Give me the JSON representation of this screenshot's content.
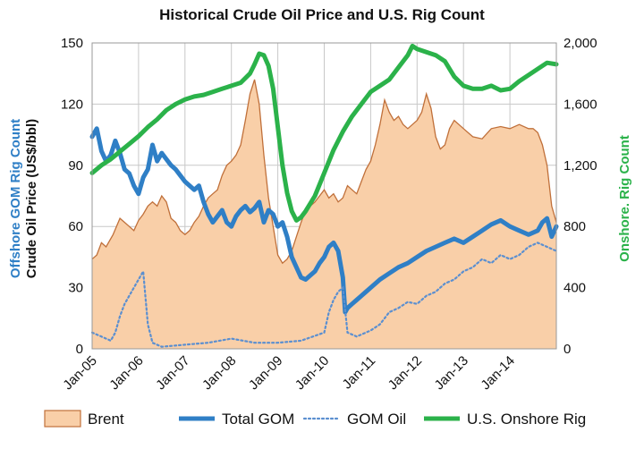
{
  "chart_data": {
    "type": "area",
    "title": "Historical Crude Oil Price and U.S. Rig Count",
    "ylabel_left_line1": "Offshore GOM Rig Count",
    "ylabel_left_line2": "Crude Oil Price (US$/bbl)",
    "ylabel_right": "Onshore. Rig Count",
    "x_ticks": [
      "Jan-05",
      "Jan-06",
      "Jan-07",
      "Jan-08",
      "Jan-09",
      "Jan-10",
      "Jan-11",
      "Jan-12",
      "Jan-13",
      "Jan-14"
    ],
    "x_range": [
      2005.0,
      2015.0
    ],
    "left_axis": {
      "ticks": [
        "0",
        "30",
        "60",
        "90",
        "120",
        "150"
      ],
      "range": [
        0,
        150
      ]
    },
    "right_axis": {
      "ticks": [
        "0",
        "400",
        "800",
        "1,200",
        "1,600",
        "2,000"
      ],
      "range": [
        0,
        2000
      ]
    },
    "grid": true,
    "legend_position": "bottom",
    "series": [
      {
        "name": "Brent",
        "style": "area",
        "axis": "left",
        "color": "#f9cfa8",
        "stroke": "#c0703a",
        "x": [
          2005.0,
          2005.1,
          2005.2,
          2005.3,
          2005.45,
          2005.6,
          2005.7,
          2005.8,
          2005.9,
          2006.0,
          2006.1,
          2006.2,
          2006.3,
          2006.4,
          2006.5,
          2006.6,
          2006.7,
          2006.8,
          2006.9,
          2007.0,
          2007.1,
          2007.2,
          2007.3,
          2007.4,
          2007.5,
          2007.6,
          2007.7,
          2007.8,
          2007.9,
          2008.0,
          2008.1,
          2008.2,
          2008.3,
          2008.4,
          2008.5,
          2008.6,
          2008.7,
          2008.8,
          2008.9,
          2009.0,
          2009.1,
          2009.2,
          2009.3,
          2009.4,
          2009.5,
          2009.6,
          2009.7,
          2009.8,
          2009.9,
          2010.0,
          2010.1,
          2010.2,
          2010.3,
          2010.4,
          2010.5,
          2010.6,
          2010.7,
          2010.8,
          2010.9,
          2011.0,
          2011.1,
          2011.2,
          2011.3,
          2011.4,
          2011.5,
          2011.6,
          2011.7,
          2011.8,
          2011.9,
          2012.0,
          2012.1,
          2012.2,
          2012.3,
          2012.4,
          2012.5,
          2012.6,
          2012.7,
          2012.8,
          2012.9,
          2013.0,
          2013.2,
          2013.4,
          2013.6,
          2013.8,
          2014.0,
          2014.2,
          2014.4,
          2014.5,
          2014.6,
          2014.7,
          2014.8,
          2014.9,
          2015.0
        ],
        "values": [
          44,
          46,
          52,
          50,
          56,
          64,
          62,
          60,
          58,
          63,
          66,
          70,
          72,
          70,
          75,
          72,
          64,
          62,
          58,
          56,
          58,
          62,
          65,
          70,
          74,
          76,
          78,
          85,
          90,
          92,
          95,
          100,
          112,
          125,
          132,
          120,
          95,
          74,
          60,
          46,
          42,
          44,
          48,
          55,
          62,
          68,
          70,
          72,
          75,
          78,
          74,
          76,
          72,
          74,
          80,
          78,
          76,
          82,
          88,
          92,
          100,
          110,
          122,
          116,
          112,
          114,
          110,
          108,
          110,
          112,
          116,
          125,
          118,
          104,
          98,
          100,
          108,
          112,
          110,
          108,
          104,
          103,
          108,
          109,
          108,
          110,
          108,
          108,
          106,
          100,
          90,
          70,
          62
        ]
      },
      {
        "name": "Total GOM",
        "style": "line",
        "axis": "left",
        "color": "#2f7fc6",
        "x": [
          2005.0,
          2005.1,
          2005.2,
          2005.3,
          2005.4,
          2005.5,
          2005.6,
          2005.7,
          2005.8,
          2005.9,
          2006.0,
          2006.1,
          2006.2,
          2006.3,
          2006.4,
          2006.5,
          2006.6,
          2006.7,
          2006.8,
          2006.9,
          2007.0,
          2007.1,
          2007.2,
          2007.3,
          2007.4,
          2007.5,
          2007.6,
          2007.7,
          2007.8,
          2007.9,
          2008.0,
          2008.1,
          2008.2,
          2008.3,
          2008.4,
          2008.5,
          2008.6,
          2008.7,
          2008.8,
          2008.9,
          2009.0,
          2009.1,
          2009.2,
          2009.3,
          2009.4,
          2009.5,
          2009.6,
          2009.7,
          2009.8,
          2009.9,
          2010.0,
          2010.1,
          2010.2,
          2010.3,
          2010.4,
          2010.45,
          2010.5,
          2010.6,
          2010.7,
          2010.8,
          2010.9,
          2011.0,
          2011.2,
          2011.4,
          2011.6,
          2011.8,
          2012.0,
          2012.2,
          2012.4,
          2012.6,
          2012.8,
          2013.0,
          2013.2,
          2013.4,
          2013.6,
          2013.8,
          2014.0,
          2014.2,
          2014.4,
          2014.6,
          2014.7,
          2014.8,
          2014.9,
          2015.0
        ],
        "values": [
          104,
          108,
          97,
          92,
          95,
          102,
          96,
          88,
          86,
          80,
          76,
          84,
          88,
          100,
          92,
          96,
          93,
          90,
          88,
          85,
          82,
          80,
          78,
          80,
          72,
          66,
          62,
          65,
          68,
          62,
          60,
          65,
          68,
          70,
          67,
          69,
          72,
          62,
          68,
          66,
          60,
          62,
          55,
          45,
          40,
          35,
          34,
          36,
          38,
          42,
          45,
          50,
          52,
          48,
          35,
          18,
          20,
          22,
          24,
          26,
          28,
          30,
          34,
          37,
          40,
          42,
          45,
          48,
          50,
          52,
          54,
          52,
          55,
          58,
          61,
          63,
          60,
          58,
          56,
          58,
          62,
          64,
          55,
          60
        ]
      },
      {
        "name": "GOM Oil",
        "style": "dotted",
        "axis": "left",
        "color": "#5b8fd0",
        "x": [
          2005.0,
          2005.2,
          2005.4,
          2005.5,
          2005.6,
          2005.7,
          2005.8,
          2005.9,
          2006.0,
          2006.1,
          2006.2,
          2006.3,
          2006.5,
          2007.0,
          2007.5,
          2008.0,
          2008.5,
          2009.0,
          2009.5,
          2010.0,
          2010.1,
          2010.2,
          2010.3,
          2010.4,
          2010.5,
          2010.7,
          2011.0,
          2011.2,
          2011.4,
          2011.6,
          2011.8,
          2012.0,
          2012.2,
          2012.4,
          2012.6,
          2012.8,
          2013.0,
          2013.2,
          2013.4,
          2013.6,
          2013.8,
          2014.0,
          2014.2,
          2014.4,
          2014.6,
          2014.8,
          2015.0
        ],
        "values": [
          8,
          6,
          4,
          8,
          16,
          22,
          26,
          30,
          34,
          38,
          12,
          3,
          1,
          2,
          3,
          5,
          3,
          3,
          4,
          8,
          18,
          24,
          28,
          30,
          8,
          6,
          9,
          12,
          18,
          20,
          23,
          22,
          26,
          28,
          32,
          34,
          38,
          40,
          44,
          42,
          46,
          44,
          46,
          50,
          52,
          50,
          48
        ]
      },
      {
        "name": "U.S. Onshore Rig",
        "style": "line",
        "axis": "right",
        "color": "#2bb24a",
        "x": [
          2005.0,
          2005.2,
          2005.4,
          2005.6,
          2005.8,
          2006.0,
          2006.2,
          2006.4,
          2006.6,
          2006.8,
          2007.0,
          2007.2,
          2007.4,
          2007.6,
          2007.8,
          2008.0,
          2008.2,
          2008.4,
          2008.5,
          2008.6,
          2008.7,
          2008.8,
          2008.9,
          2009.0,
          2009.1,
          2009.2,
          2009.3,
          2009.4,
          2009.5,
          2009.6,
          2009.8,
          2010.0,
          2010.2,
          2010.4,
          2010.6,
          2010.8,
          2011.0,
          2011.2,
          2011.4,
          2011.6,
          2011.8,
          2011.9,
          2012.0,
          2012.2,
          2012.4,
          2012.6,
          2012.8,
          2013.0,
          2013.2,
          2013.4,
          2013.6,
          2013.8,
          2014.0,
          2014.2,
          2014.4,
          2014.6,
          2014.8,
          2015.0
        ],
        "values": [
          1150,
          1200,
          1240,
          1290,
          1340,
          1390,
          1450,
          1500,
          1560,
          1600,
          1630,
          1650,
          1660,
          1680,
          1700,
          1720,
          1740,
          1800,
          1860,
          1930,
          1920,
          1850,
          1700,
          1450,
          1200,
          1020,
          900,
          840,
          860,
          900,
          1000,
          1150,
          1300,
          1420,
          1520,
          1600,
          1680,
          1720,
          1760,
          1840,
          1920,
          1980,
          1960,
          1940,
          1920,
          1880,
          1780,
          1720,
          1700,
          1700,
          1720,
          1690,
          1700,
          1750,
          1790,
          1830,
          1870,
          1860
        ]
      }
    ]
  }
}
